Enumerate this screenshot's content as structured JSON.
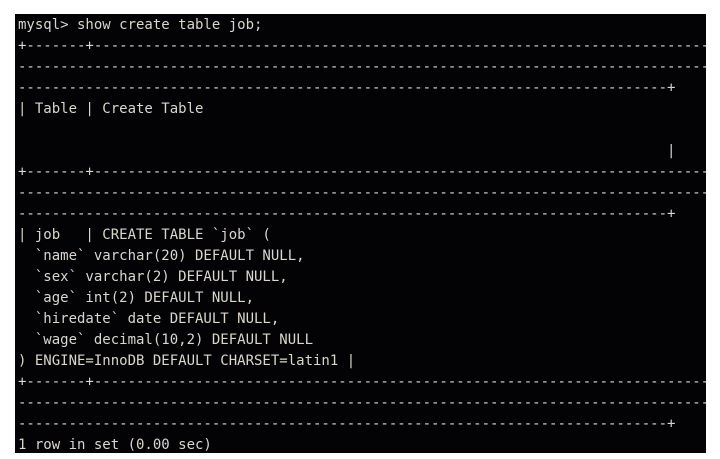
{
  "terminal": {
    "lines": [
      "mysql> show create table job;",
      "+-------+-------------------------------------------------------------------------",
      "----------------------------------------------------------------------------------",
      "-----------------------------------------------------------------------------+",
      "| Table | Create Table",
      "",
      "                                                                             |",
      "+-------+-------------------------------------------------------------------------",
      "----------------------------------------------------------------------------------",
      "-----------------------------------------------------------------------------+",
      "| job   | CREATE TABLE `job` (",
      "  `name` varchar(20) DEFAULT NULL,",
      "  `sex` varchar(2) DEFAULT NULL,",
      "  `age` int(2) DEFAULT NULL,",
      "  `hiredate` date DEFAULT NULL,",
      "  `wage` decimal(10,2) DEFAULT NULL",
      ") ENGINE=InnoDB DEFAULT CHARSET=latin1 |",
      "+-------+-------------------------------------------------------------------------",
      "----------------------------------------------------------------------------------",
      "-----------------------------------------------------------------------------+",
      "1 row in set (0.00 sec)"
    ]
  }
}
